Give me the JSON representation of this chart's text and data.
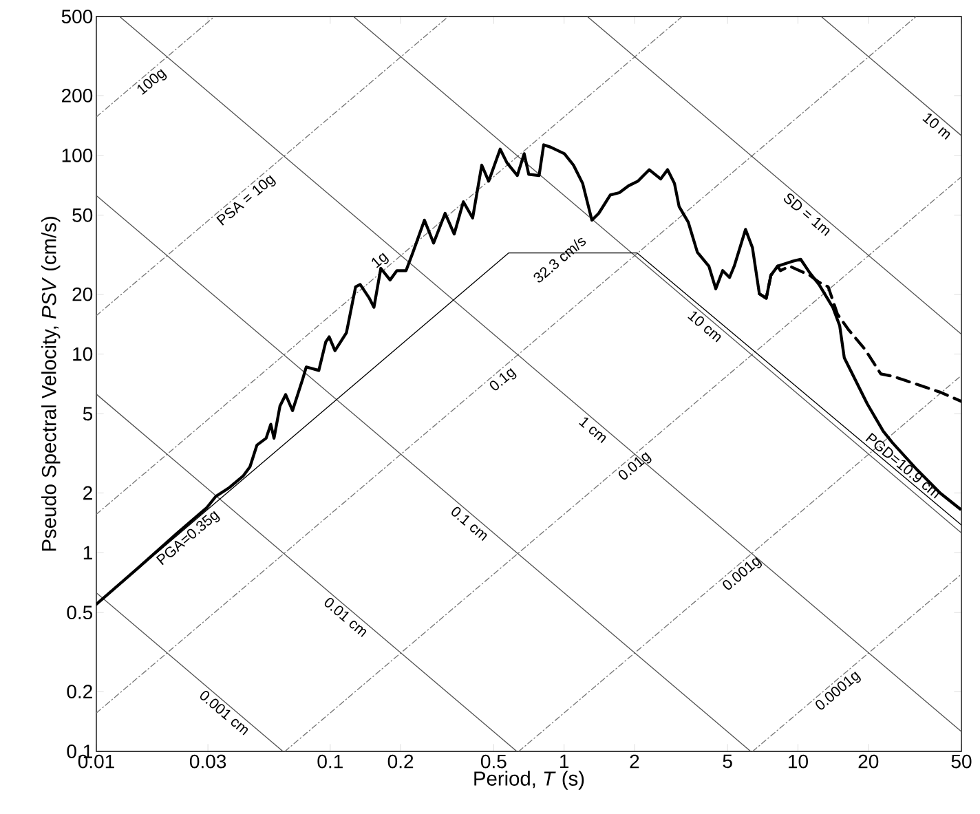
{
  "chart_data": {
    "type": "line",
    "log": "xy",
    "xlabel": "Period, *T* (s)",
    "ylabel": "Pseudo Spectral Velocity, *PSV* (cm/s)",
    "xlim": [
      0.01,
      50
    ],
    "ylim": [
      0.1,
      500
    ],
    "xticks": [
      0.01,
      0.03,
      0.1,
      0.2,
      0.5,
      1,
      2,
      5,
      10,
      20,
      50
    ],
    "yticks": [
      0.1,
      0.2,
      0.5,
      1,
      2,
      5,
      10,
      20,
      50,
      100,
      200,
      500
    ],
    "series": [
      {
        "x": [
          0.01,
          0.032
        ],
        "values": [
          156.1,
          500
        ],
        "color": "#777777",
        "line_style": "dotted"
      },
      {
        "x": [
          0.01,
          0.32
        ],
        "values": [
          15.61,
          500
        ],
        "color": "#777777",
        "line_style": "dotted"
      },
      {
        "x": [
          0.01,
          3.2
        ],
        "values": [
          1.561,
          500
        ],
        "color": "#777777",
        "line_style": "dotted"
      },
      {
        "x": [
          0.01,
          32
        ],
        "values": [
          0.1561,
          500
        ],
        "color": "#777777",
        "line_style": "dotted"
      },
      {
        "x": [
          0.064,
          50
        ],
        "values": [
          0.1,
          78.05
        ],
        "color": "#777777",
        "line_style": "dotted"
      },
      {
        "x": [
          0.64,
          50
        ],
        "values": [
          0.1,
          7.805
        ],
        "color": "#777777",
        "line_style": "dotted"
      },
      {
        "x": [
          6.4,
          50
        ],
        "values": [
          0.1,
          0.7805
        ],
        "color": "#777777",
        "line_style": "dotted"
      },
      {
        "x": [
          0.01,
          0.0628
        ],
        "values": [
          0.628,
          0.1
        ],
        "color": "#555555",
        "line_style": "solid"
      },
      {
        "x": [
          0.01,
          0.628
        ],
        "values": [
          6.28,
          0.1
        ],
        "color": "#555555",
        "line_style": "solid"
      },
      {
        "x": [
          0.01,
          6.28
        ],
        "values": [
          62.8,
          0.1
        ],
        "color": "#555555",
        "line_style": "solid"
      },
      {
        "x": [
          0.01257,
          50
        ],
        "values": [
          500,
          0.1257
        ],
        "color": "#555555",
        "line_style": "solid"
      },
      {
        "x": [
          0.1257,
          50
        ],
        "values": [
          500,
          1.257
        ],
        "color": "#555555",
        "line_style": "solid"
      },
      {
        "x": [
          1.257,
          50
        ],
        "values": [
          500,
          12.57
        ],
        "color": "#555555",
        "line_style": "solid"
      },
      {
        "x": [
          12.57,
          50
        ],
        "values": [
          500,
          125.7
        ],
        "color": "#555555",
        "line_style": "solid"
      },
      {
        "x": [
          0.01,
          0.58,
          2.05,
          50
        ],
        "values": [
          0.55,
          32.3,
          32.3,
          1.38
        ],
        "color": "#000000",
        "line_style": "solid"
      },
      {
        "x": [
          6.84,
          7.32,
          7.66,
          8.19,
          8.42,
          9.21,
          11.24,
          12.3,
          13.47,
          14.75,
          16.5,
          19.3,
          22.6,
          25.35,
          29.0,
          40.7,
          49.9
        ],
        "values": [
          20.1,
          19.1,
          24.9,
          27.7,
          26.3,
          27.7,
          24.9,
          23.0,
          21.8,
          15.9,
          13.2,
          10.6,
          7.95,
          7.74,
          7.34,
          6.42,
          5.78
        ],
        "color": "#000000",
        "line_style": "dashed"
      },
      {
        "x": [
          0.01,
          0.015,
          0.0226,
          0.0296,
          0.0324,
          0.0371,
          0.0424,
          0.0454,
          0.0486,
          0.0532,
          0.0557,
          0.0575,
          0.061,
          0.0645,
          0.069,
          0.0764,
          0.079,
          0.0894,
          0.0957,
          0.099,
          0.1048,
          0.1173,
          0.1284,
          0.1343,
          0.147,
          0.1538,
          0.1646,
          0.1803,
          0.1929,
          0.211,
          0.2258,
          0.2529,
          0.2767,
          0.31,
          0.339,
          0.371,
          0.4064,
          0.4446,
          0.476,
          0.533,
          0.57,
          0.631,
          0.675,
          0.706,
          0.782,
          0.818,
          0.876,
          1.003,
          1.097,
          1.201,
          1.315,
          1.407,
          1.576,
          1.724,
          1.887,
          2.066,
          2.312,
          2.589,
          2.771,
          2.965,
          3.103,
          3.396,
          3.716,
          4.161,
          4.452,
          4.766,
          5.1,
          5.34,
          5.97,
          6.39,
          6.84,
          7.32,
          7.66,
          8.19,
          9.38,
          10.27,
          11.24,
          12.3,
          14.09,
          15.08,
          15.78,
          16.89,
          19.78,
          23.15,
          25.35,
          31.8,
          40.7,
          49.4
        ],
        "values": [
          0.55,
          0.834,
          1.28,
          1.68,
          1.92,
          2.13,
          2.43,
          2.71,
          3.48,
          3.77,
          4.43,
          3.77,
          5.48,
          6.25,
          5.19,
          7.53,
          8.61,
          8.27,
          11.5,
          12.2,
          10.4,
          12.8,
          21.8,
          22.4,
          19.1,
          17.2,
          27.0,
          23.6,
          26.3,
          26.3,
          32.5,
          47.2,
          36.2,
          51.1,
          40.2,
          58.4,
          48.4,
          89.3,
          74.1,
          107.5,
          91.7,
          79.2,
          102,
          80.3,
          79.2,
          113,
          110,
          102,
          89.3,
          72.2,
          47.2,
          51.1,
          63.2,
          64.9,
          70.3,
          74.1,
          84.7,
          76.1,
          84.7,
          72.2,
          55.3,
          46.1,
          32.5,
          27.7,
          21.3,
          26.3,
          24.3,
          27.7,
          42.4,
          34.3,
          20.1,
          19.1,
          24.9,
          27.7,
          29.2,
          30.0,
          25.6,
          22.4,
          17.2,
          13.9,
          9.57,
          8.16,
          5.62,
          4.09,
          3.58,
          2.67,
          1.99,
          1.66
        ],
        "color": "#000000",
        "line_style": "solid"
      }
    ],
    "annotations": [
      {
        "text": "100g",
        "x": 0.01627,
        "y": 254.0
      },
      {
        "text": "PSA = 10g",
        "x": 0.04127,
        "y": 64.4
      },
      {
        "text": "1g",
        "x": 0.1738,
        "y": 27.13
      },
      {
        "text": "0.1g",
        "x": 0.5164,
        "y": 8.06
      },
      {
        "text": "0.01g",
        "x": 1.892,
        "y": 2.953
      },
      {
        "text": "0.001g",
        "x": 5.444,
        "y": 0.85
      },
      {
        "text": "0.0001g",
        "x": 13.99,
        "y": 0.2184
      },
      {
        "text": "10 m",
        "x": 41.52,
        "y": 151.3
      },
      {
        "text": "SD = 1m",
        "x": 11.56,
        "y": 54.35
      },
      {
        "text": "10 cm",
        "x": 4.231,
        "y": 14.85
      },
      {
        "text": "1 cm",
        "x": 1.405,
        "y": 4.472
      },
      {
        "text": "0.1 cm",
        "x": 0.4163,
        "y": 1.509
      },
      {
        "text": "0.01 cm",
        "x": 0.1231,
        "y": 0.5104
      },
      {
        "text": "0.001 cm",
        "x": 0.03726,
        "y": 0.1686
      },
      {
        "text": "32.3 cm/s",
        "x": 0.906,
        "y": 32.3
      },
      {
        "text": "PGA=0.35g",
        "x": 0.0233,
        "y": 1.285
      },
      {
        "text": "PGD=10.9 cm",
        "x": 26.8,
        "y": 2.554
      }
    ]
  }
}
